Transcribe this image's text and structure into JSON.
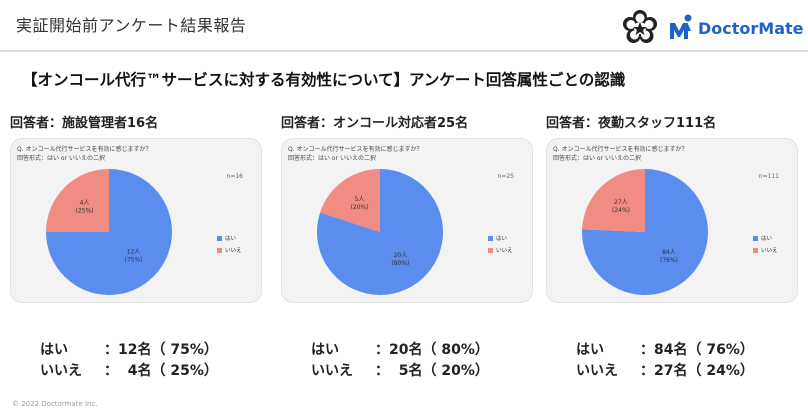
{
  "header": {
    "title": "実証開始前アンケート結果報告",
    "brand": "DoctorMate"
  },
  "main_title": "【オンコール代行™サービスに対する有効性について】アンケート回答属性ごとの認識",
  "colors": {
    "yes": "#5b8def",
    "no": "#f08c82",
    "card": "#f3f3f3"
  },
  "question": {
    "line1": "Q.  オンコール代行サービスを有効に感じますか？",
    "line2": "回答形式：はい or いいえの二択"
  },
  "legend": {
    "yes": "はい",
    "no": "いいえ"
  },
  "panels": [
    {
      "group_label": "回答者：施設管理者16名",
      "n_label": "n=16",
      "summary": {
        "yes_key": "はい",
        "yes_value": "：12名（ 75%）",
        "no_key": "いいえ",
        "no_value": "：  4名（ 25%）"
      }
    },
    {
      "group_label": "回答者：オンコール対応者25名",
      "n_label": "n=25",
      "summary": {
        "yes_key": "はい",
        "yes_value": "：20名（ 80%）",
        "no_key": "いいえ",
        "no_value": "：  5名（ 20%）"
      }
    },
    {
      "group_label": "回答者：夜勤スタッフ111名",
      "n_label": "n=111",
      "summary": {
        "yes_key": "はい",
        "yes_value": "：84名（ 76%）",
        "no_key": "いいえ",
        "no_value": "：27名（ 24%）"
      }
    }
  ],
  "chart_data": [
    {
      "type": "pie",
      "categories": [
        "はい",
        "いいえ"
      ],
      "values": [
        12,
        4
      ],
      "labels": [
        [
          "12人",
          "(75%)"
        ],
        [
          "4人",
          "(25%)"
        ]
      ]
    },
    {
      "type": "pie",
      "categories": [
        "はい",
        "いいえ"
      ],
      "values": [
        20,
        5
      ],
      "labels": [
        [
          "20人",
          "(80%)"
        ],
        [
          "5人",
          "(20%)"
        ]
      ]
    },
    {
      "type": "pie",
      "categories": [
        "はい",
        "いいえ"
      ],
      "values": [
        84,
        27
      ],
      "labels": [
        [
          "84人",
          "(76%)"
        ],
        [
          "27人",
          "(24%)"
        ]
      ]
    }
  ],
  "footer": "© 2022 Doctormate Inc."
}
